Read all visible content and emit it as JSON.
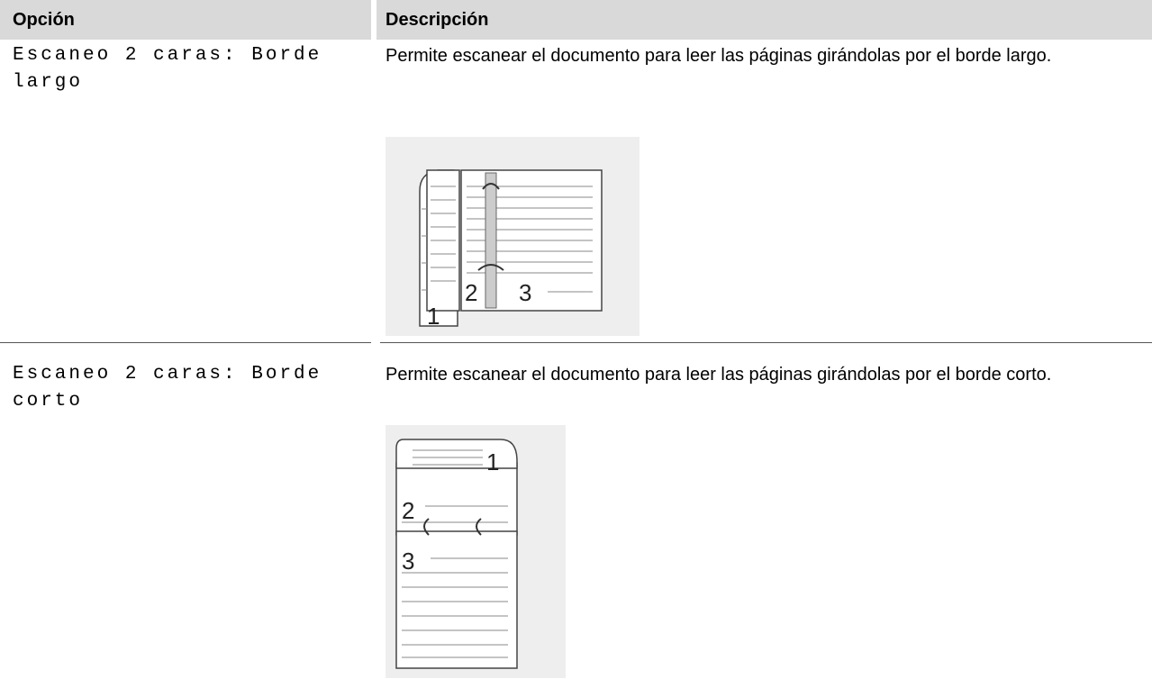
{
  "table": {
    "headers": [
      "Opción",
      "Descripción"
    ],
    "rows": [
      {
        "option": "Escaneo 2 caras: Borde largo",
        "description": "Permite escanear el documento para leer las páginas girándolas por el borde largo.",
        "figure_labels": [
          "1",
          "2",
          "3"
        ]
      },
      {
        "option": "Escaneo 2 caras: Borde corto",
        "description": "Permite escanear el documento para leer las páginas girándolas por el borde corto.",
        "figure_labels": [
          "1",
          "2",
          "3"
        ]
      }
    ]
  }
}
